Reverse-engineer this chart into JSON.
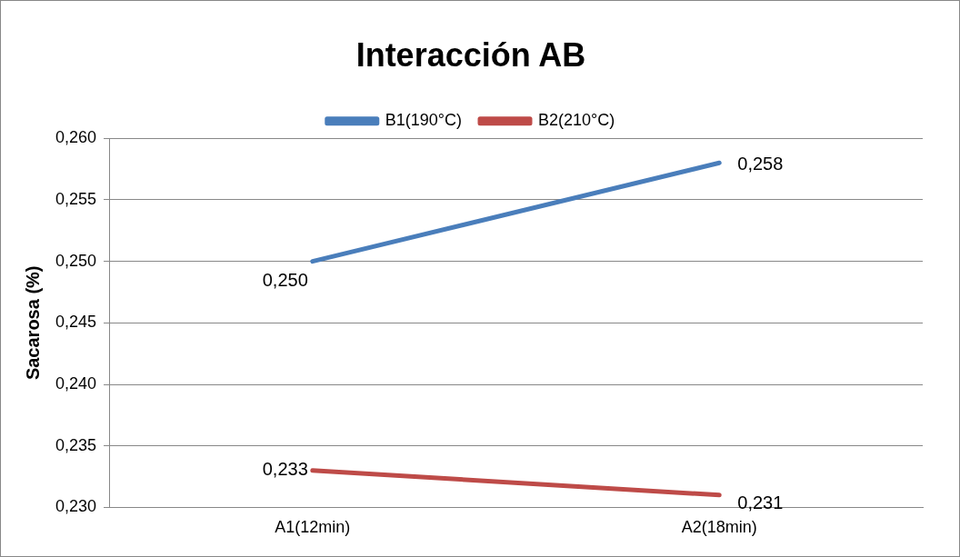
{
  "chart_data": {
    "type": "line",
    "title": "Interacción AB",
    "ylabel": "Sacarosa (%)",
    "categories": [
      "A1(12min)",
      "A2(18min)"
    ],
    "series": [
      {
        "name": "B1(190°C)",
        "color": "#4a7ebb",
        "values": [
          0.25,
          0.258
        ],
        "value_labels": [
          "0,250",
          "0,258"
        ]
      },
      {
        "name": "B2(210°C)",
        "color": "#be4b48",
        "values": [
          0.233,
          0.231
        ],
        "value_labels": [
          "0,233",
          "0,231"
        ]
      }
    ],
    "ylim": [
      0.23,
      0.26
    ],
    "yticks": [
      {
        "value": 0.23,
        "label": "0,230"
      },
      {
        "value": 0.235,
        "label": "0,235"
      },
      {
        "value": 0.24,
        "label": "0,240"
      },
      {
        "value": 0.245,
        "label": "0,245"
      },
      {
        "value": 0.25,
        "label": "0,250"
      },
      {
        "value": 0.255,
        "label": "0,255"
      },
      {
        "value": 0.26,
        "label": "0,260"
      }
    ],
    "grid": "y",
    "legend": "top",
    "marker": "none",
    "line_style": "solid"
  }
}
